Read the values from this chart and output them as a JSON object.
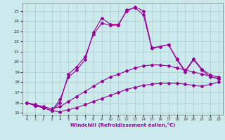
{
  "xlabel": "Windchill (Refroidissement éolien,°C)",
  "xlim": [
    -0.5,
    23.5
  ],
  "ylim": [
    14.8,
    25.8
  ],
  "yticks": [
    15,
    16,
    17,
    18,
    19,
    20,
    21,
    22,
    23,
    24,
    25
  ],
  "xticks": [
    0,
    1,
    2,
    3,
    4,
    5,
    6,
    7,
    8,
    9,
    10,
    11,
    12,
    13,
    14,
    15,
    16,
    17,
    18,
    19,
    20,
    21,
    22,
    23
  ],
  "background_color": "#cce9ec",
  "grid_color": "#aacdd0",
  "line_color": "#990099",
  "line1_x": [
    0,
    1,
    2,
    3,
    4,
    5,
    6,
    7,
    8,
    9,
    10,
    11,
    12,
    13,
    14,
    15,
    16,
    17,
    18,
    19,
    20,
    21,
    22,
    23
  ],
  "line1_y": [
    16.0,
    15.7,
    15.5,
    15.2,
    15.1,
    15.3,
    15.5,
    15.8,
    16.1,
    16.4,
    16.7,
    17.0,
    17.3,
    17.5,
    17.7,
    17.8,
    17.9,
    17.9,
    17.9,
    17.8,
    17.7,
    17.6,
    17.8,
    18.0
  ],
  "line2_x": [
    0,
    1,
    2,
    3,
    4,
    5,
    6,
    7,
    8,
    9,
    10,
    11,
    12,
    13,
    14,
    15,
    16,
    17,
    18,
    19,
    20,
    21,
    22,
    23
  ],
  "line2_y": [
    16.0,
    15.8,
    15.6,
    15.4,
    15.6,
    16.1,
    16.6,
    17.1,
    17.6,
    18.1,
    18.5,
    18.8,
    19.1,
    19.4,
    19.6,
    19.7,
    19.7,
    19.6,
    19.4,
    19.2,
    19.0,
    18.8,
    18.6,
    18.3
  ],
  "line3_x": [
    0,
    1,
    2,
    3,
    4,
    5,
    6,
    7,
    8,
    9,
    10,
    11,
    12,
    13,
    14,
    15,
    16,
    17,
    18,
    19,
    20,
    21,
    22,
    23
  ],
  "line3_y": [
    16.0,
    15.7,
    15.5,
    15.2,
    16.0,
    18.8,
    19.5,
    20.5,
    22.7,
    23.8,
    23.6,
    23.6,
    25.1,
    25.3,
    24.6,
    21.3,
    21.5,
    21.7,
    20.2,
    19.0,
    20.2,
    19.2,
    18.5,
    18.4
  ],
  "line4_x": [
    0,
    1,
    2,
    3,
    4,
    5,
    6,
    7,
    8,
    9,
    10,
    11,
    12,
    13,
    14,
    15,
    16,
    17,
    18,
    19,
    20,
    21,
    22,
    23
  ],
  "line4_y": [
    16.0,
    15.7,
    15.5,
    15.2,
    16.3,
    18.5,
    19.2,
    20.2,
    22.9,
    24.3,
    23.7,
    23.7,
    25.0,
    25.4,
    25.0,
    21.4,
    21.5,
    21.7,
    20.3,
    19.1,
    20.3,
    19.3,
    18.7,
    18.5
  ]
}
